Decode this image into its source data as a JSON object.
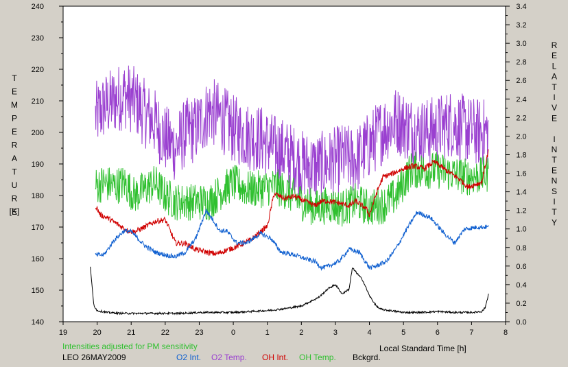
{
  "chart_data": {
    "type": "line",
    "station": "LEO 26MAY2009",
    "note": "Intensities adjusted for PM sensitivity",
    "xlabel": "Local Standard Time [h]",
    "ylabel_left_letters": [
      "T",
      "E",
      "M",
      "P",
      "E",
      "R",
      "A",
      "T",
      "U",
      "R",
      "E"
    ],
    "ylabel_left_unit": "[K]",
    "ylabel_right_letters": [
      "R",
      "E",
      "L",
      "A",
      "T",
      "I",
      "V",
      "E",
      "",
      "I",
      "N",
      "T",
      "E",
      "N",
      "S",
      "I",
      "T",
      "Y"
    ],
    "x_ticks": [
      "19",
      "20",
      "21",
      "22",
      "23",
      "0",
      "1",
      "2",
      "3",
      "4",
      "5",
      "6",
      "7",
      "8"
    ],
    "y_left_ticks": [
      "140",
      "150",
      "160",
      "170",
      "180",
      "190",
      "200",
      "210",
      "220",
      "230",
      "240"
    ],
    "y_right_ticks": [
      "0.0",
      "0.2",
      "0.4",
      "0.6",
      "0.8",
      "1.0",
      "1.2",
      "1.4",
      "1.6",
      "1.8",
      "2.0",
      "2.2",
      "2.4",
      "2.6",
      "2.8",
      "3.0",
      "3.2",
      "3.4"
    ],
    "xlim": [
      19,
      32
    ],
    "ylim_left": [
      140,
      240
    ],
    "ylim_right": [
      0,
      3.4
    ],
    "grid": false,
    "legend": [
      "O2 Int.",
      "O2 Temp.",
      "OH Int.",
      "OH Temp.",
      "Bckgrd."
    ],
    "colors": {
      "O2 Int.": "#1060d0",
      "O2 Temp.": "#9a40d0",
      "OH Int.": "#d00000",
      "OH Temp.": "#30c030",
      "Bckgrd.": "#000000",
      "note": "#30c030",
      "plot_bg": "#ffffff",
      "window_bg": "#d4d0c8"
    },
    "series": [
      {
        "name": "O2 Temp.",
        "axis": "left",
        "jitter": 11,
        "x": [
          19.95,
          20.2,
          20.5,
          20.8,
          21.1,
          21.4,
          21.7,
          22.0,
          22.3,
          22.6,
          22.9,
          23.3,
          23.6,
          24.0,
          24.4,
          24.8,
          25.2,
          25.6,
          26.0,
          26.4,
          26.8,
          27.2,
          27.6,
          28.0,
          28.4,
          28.8,
          29.2,
          29.6,
          30.0,
          30.4,
          30.8,
          31.2,
          31.5
        ],
        "y": [
          205,
          208,
          210,
          212,
          210,
          206,
          203,
          198,
          195,
          200,
          201,
          207,
          205,
          201,
          199,
          198,
          195,
          193,
          190,
          189,
          190,
          192,
          191,
          196,
          201,
          204,
          201,
          200,
          201,
          203,
          201,
          200,
          200
        ]
      },
      {
        "name": "OH Temp.",
        "axis": "left",
        "jitter": 6,
        "x": [
          19.95,
          20.2,
          20.5,
          20.8,
          21.1,
          21.4,
          21.7,
          22.0,
          22.3,
          22.6,
          22.9,
          23.3,
          23.6,
          24.0,
          24.4,
          24.8,
          25.2,
          25.6,
          26.0,
          26.4,
          26.8,
          27.2,
          27.6,
          28.0,
          28.4,
          28.8,
          29.2,
          29.6,
          30.0,
          30.4,
          30.8,
          31.2,
          31.5
        ],
        "y": [
          183,
          184,
          183,
          184,
          180,
          182,
          184,
          180,
          178,
          178,
          178,
          178,
          181,
          184,
          182,
          182,
          183,
          181,
          178,
          176,
          177,
          176,
          178,
          176,
          177,
          180,
          188,
          188,
          188,
          187,
          186,
          186,
          187
        ]
      },
      {
        "name": "OH Int.",
        "axis": "right",
        "jitter": 0.03,
        "x": [
          19.95,
          20.1,
          20.3,
          20.6,
          20.9,
          21.1,
          21.4,
          21.7,
          22.0,
          22.3,
          22.6,
          22.9,
          23.2,
          23.5,
          23.8,
          24.1,
          24.5,
          24.8,
          25.0,
          25.2,
          25.5,
          25.8,
          26.1,
          26.4,
          26.6,
          26.8,
          27.1,
          27.4,
          27.6,
          27.9,
          28.0,
          28.2,
          28.4,
          28.7,
          29.0,
          29.3,
          29.6,
          29.9,
          30.0,
          30.3,
          30.6,
          30.9,
          31.1,
          31.3,
          31.5
        ],
        "y": [
          1.25,
          1.15,
          1.12,
          1.05,
          0.98,
          0.97,
          1.02,
          1.08,
          1.1,
          0.85,
          0.84,
          0.78,
          0.75,
          0.73,
          0.77,
          0.81,
          0.88,
          0.97,
          1.03,
          1.38,
          1.33,
          1.35,
          1.3,
          1.25,
          1.3,
          1.3,
          1.28,
          1.25,
          1.3,
          1.22,
          1.15,
          1.38,
          1.56,
          1.6,
          1.65,
          1.68,
          1.65,
          1.72,
          1.7,
          1.62,
          1.55,
          1.45,
          1.48,
          1.5,
          1.85
        ]
      },
      {
        "name": "O2 Int.",
        "axis": "right",
        "jitter": 0.025,
        "x": [
          19.95,
          20.2,
          20.5,
          20.8,
          21.0,
          21.4,
          21.7,
          22.0,
          22.3,
          22.6,
          22.9,
          23.2,
          23.4,
          23.6,
          23.8,
          24.1,
          24.4,
          24.8,
          25.1,
          25.4,
          25.8,
          26.1,
          26.4,
          26.6,
          26.8,
          27.1,
          27.4,
          27.7,
          28.0,
          28.2,
          28.5,
          28.8,
          29.1,
          29.4,
          29.8,
          30.2,
          30.5,
          30.8,
          31.2,
          31.5
        ],
        "y": [
          0.72,
          0.72,
          0.88,
          0.98,
          0.97,
          0.82,
          0.75,
          0.72,
          0.7,
          0.75,
          0.9,
          1.2,
          1.1,
          0.98,
          0.98,
          0.85,
          0.85,
          0.95,
          0.9,
          0.75,
          0.72,
          0.68,
          0.65,
          0.58,
          0.6,
          0.65,
          0.78,
          0.75,
          0.58,
          0.6,
          0.65,
          0.8,
          1.0,
          1.18,
          1.12,
          0.95,
          0.85,
          1.0,
          1.02,
          1.02
        ]
      },
      {
        "name": "Bckgrd.",
        "axis": "right",
        "jitter": 0.01,
        "x": [
          19.8,
          19.85,
          19.9,
          20.0,
          20.3,
          20.7,
          21.0,
          21.5,
          22.0,
          22.5,
          23.0,
          23.5,
          24.0,
          24.5,
          25.0,
          25.5,
          26.0,
          26.5,
          26.8,
          27.0,
          27.2,
          27.4,
          27.5,
          27.8,
          28.0,
          28.2,
          28.3,
          28.4,
          28.6,
          29.0,
          29.5,
          30.0,
          30.5,
          31.0,
          31.3,
          31.4,
          31.5
        ],
        "y": [
          0.6,
          0.38,
          0.18,
          0.12,
          0.1,
          0.09,
          0.09,
          0.09,
          0.09,
          0.09,
          0.1,
          0.1,
          0.1,
          0.11,
          0.12,
          0.14,
          0.17,
          0.26,
          0.36,
          0.4,
          0.3,
          0.35,
          0.58,
          0.45,
          0.28,
          0.17,
          0.14,
          0.13,
          0.12,
          0.1,
          0.1,
          0.11,
          0.1,
          0.1,
          0.11,
          0.15,
          0.3
        ]
      }
    ]
  }
}
